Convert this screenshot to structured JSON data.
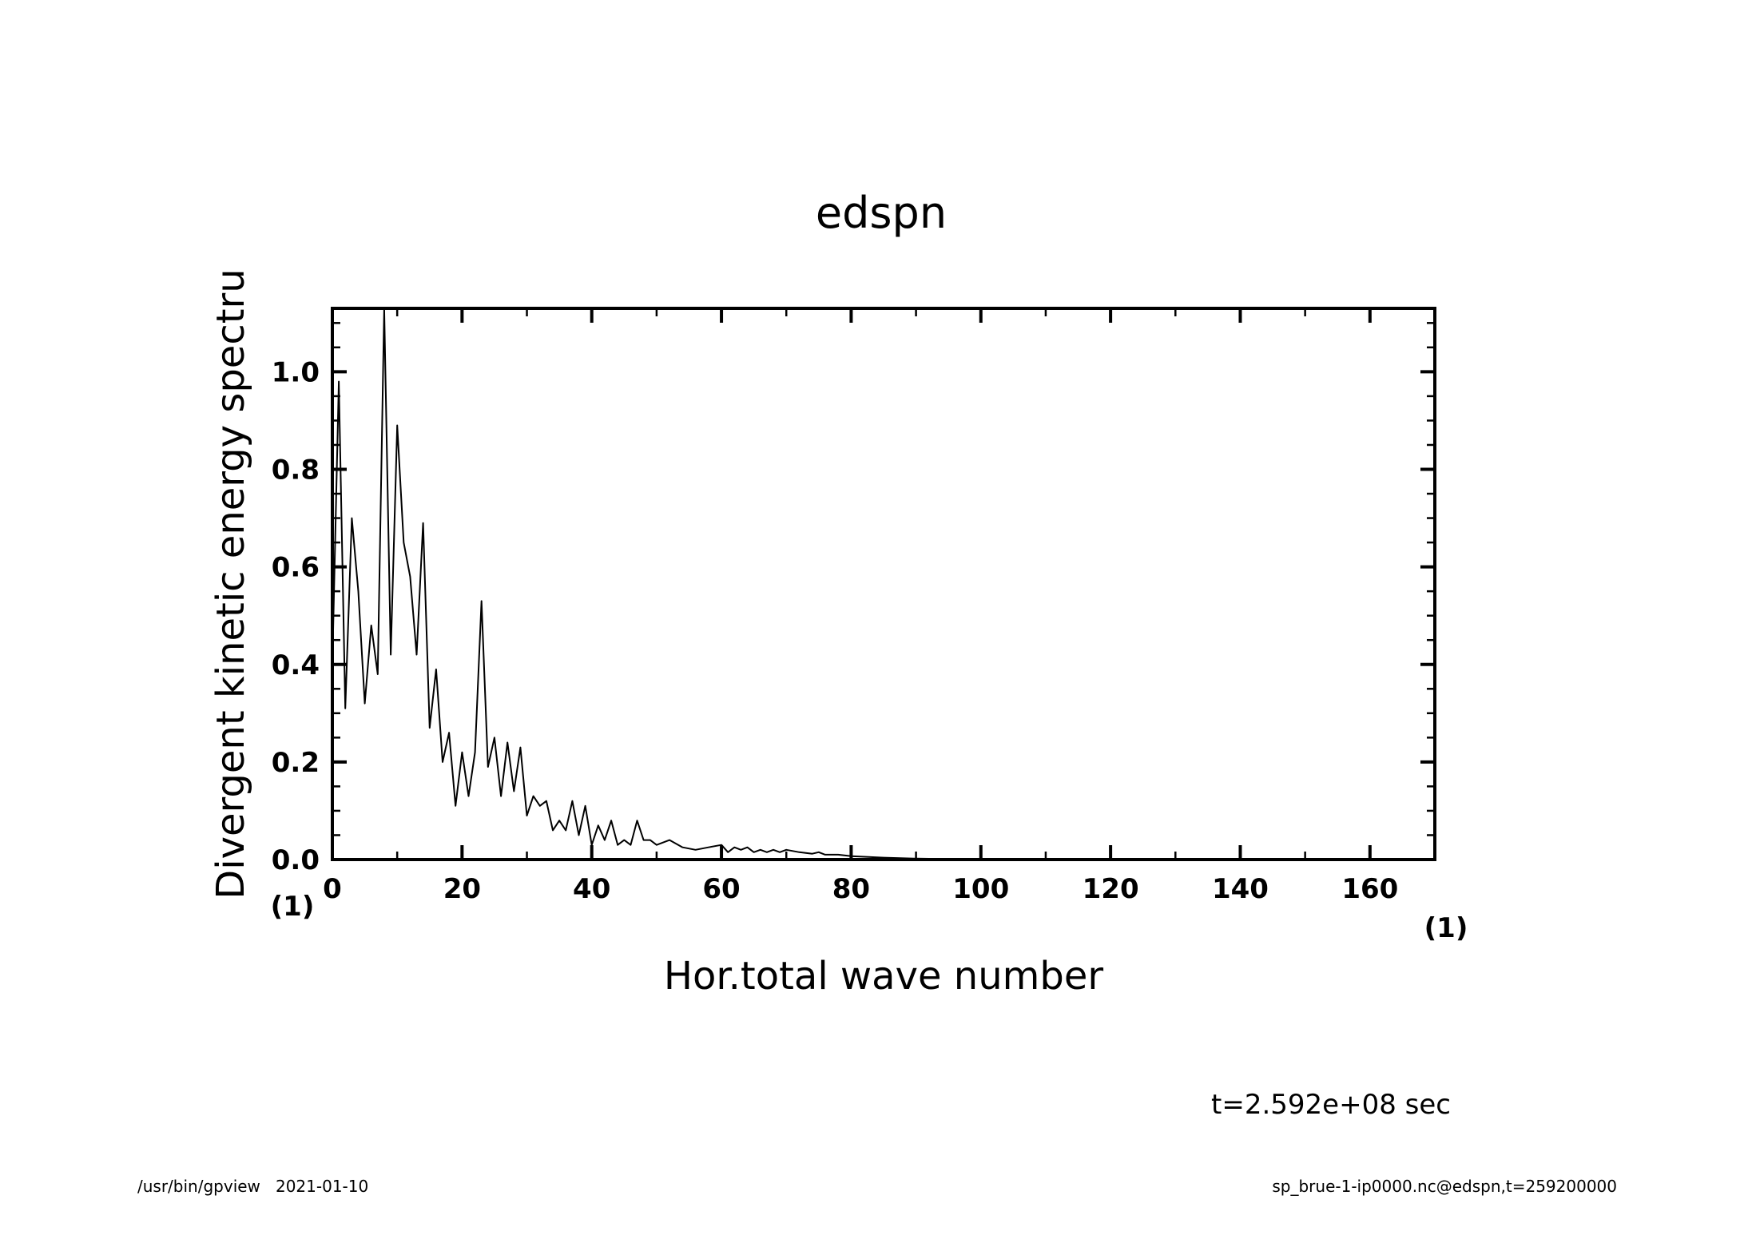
{
  "chart_data": {
    "type": "line",
    "title": "edspn",
    "xlabel": "Hor.total wave number",
    "ylabel": "Divergent kinetic energy spectru",
    "x_unit": "(1)",
    "y_unit": "(1)",
    "xlim": [
      0,
      170
    ],
    "ylim": [
      0,
      1.13
    ],
    "xticks": [
      0,
      20,
      40,
      60,
      80,
      100,
      120,
      140,
      160
    ],
    "xtick_labels": [
      "0",
      "20",
      "40",
      "60",
      "80",
      "100",
      "120",
      "140",
      "160"
    ],
    "yticks": [
      0.0,
      0.2,
      0.4,
      0.6,
      0.8,
      1.0
    ],
    "ytick_labels": [
      "0.0",
      "0.2",
      "0.4",
      "0.6",
      "0.8",
      "1.0"
    ],
    "grid": false,
    "line_color": "#000000",
    "series": [
      {
        "x": [
          0,
          1,
          2,
          3,
          4,
          5,
          6,
          7,
          8,
          9,
          10,
          11,
          12,
          13,
          14,
          15,
          16,
          17,
          18,
          19,
          20,
          21,
          22,
          23,
          24,
          25,
          26,
          27,
          28,
          29,
          30,
          31,
          32,
          33,
          34,
          35,
          36,
          37,
          38,
          39,
          40,
          41,
          42,
          43,
          44,
          45,
          46,
          47,
          48,
          49,
          50,
          52,
          54,
          56,
          58,
          60,
          61,
          62,
          63,
          64,
          65,
          66,
          67,
          68,
          69,
          70,
          72,
          74,
          75,
          76,
          78,
          80,
          85,
          90,
          95,
          100,
          110,
          120,
          130,
          140,
          150,
          160,
          170
        ],
        "y": [
          0.4,
          0.98,
          0.31,
          0.7,
          0.55,
          0.32,
          0.48,
          0.38,
          1.13,
          0.42,
          0.89,
          0.65,
          0.58,
          0.42,
          0.69,
          0.27,
          0.39,
          0.2,
          0.26,
          0.11,
          0.22,
          0.13,
          0.22,
          0.53,
          0.19,
          0.25,
          0.13,
          0.24,
          0.14,
          0.23,
          0.09,
          0.13,
          0.11,
          0.12,
          0.06,
          0.08,
          0.06,
          0.12,
          0.05,
          0.11,
          0.03,
          0.07,
          0.04,
          0.08,
          0.03,
          0.04,
          0.03,
          0.08,
          0.04,
          0.04,
          0.03,
          0.04,
          0.025,
          0.02,
          0.025,
          0.03,
          0.015,
          0.025,
          0.02,
          0.025,
          0.015,
          0.02,
          0.015,
          0.02,
          0.015,
          0.02,
          0.015,
          0.012,
          0.015,
          0.01,
          0.01,
          0.007,
          0.004,
          0.002,
          0.001,
          0.0005,
          0.0003,
          0.0002,
          0.0001,
          0.0001,
          0.0001,
          0.0001,
          0.0001
        ]
      }
    ]
  },
  "time_label": "t=2.592e+08 sec",
  "footer": {
    "left": "/usr/bin/gpview   2021-01-10",
    "right": "sp_brue-1-ip0000.nc@edspn,t=259200000"
  }
}
